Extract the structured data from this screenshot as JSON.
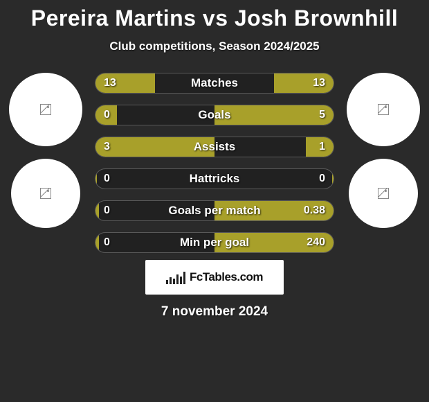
{
  "title": "Pereira Martins vs Josh Brownhill",
  "subtitle": "Club competitions, Season 2024/2025",
  "date": "7 november 2024",
  "logo_text": "FcTables.com",
  "colors": {
    "left": "#a8a02a",
    "right": "#a8a02a",
    "background": "#2a2a2a",
    "avatar_bg": "#ffffff"
  },
  "stats": [
    {
      "label": "Matches",
      "left_val": "13",
      "right_val": "13",
      "left_pct": 50,
      "right_pct": 50
    },
    {
      "label": "Goals",
      "left_val": "0",
      "right_val": "5",
      "left_pct": 18,
      "right_pct": 100
    },
    {
      "label": "Assists",
      "left_val": "3",
      "right_val": "1",
      "left_pct": 100,
      "right_pct": 23
    },
    {
      "label": "Hattricks",
      "left_val": "0",
      "right_val": "0",
      "left_pct": 1,
      "right_pct": 1
    },
    {
      "label": "Goals per match",
      "left_val": "0",
      "right_val": "0.38",
      "left_pct": 3,
      "right_pct": 100
    },
    {
      "label": "Min per goal",
      "left_val": "0",
      "right_val": "240",
      "left_pct": 3,
      "right_pct": 100
    }
  ]
}
